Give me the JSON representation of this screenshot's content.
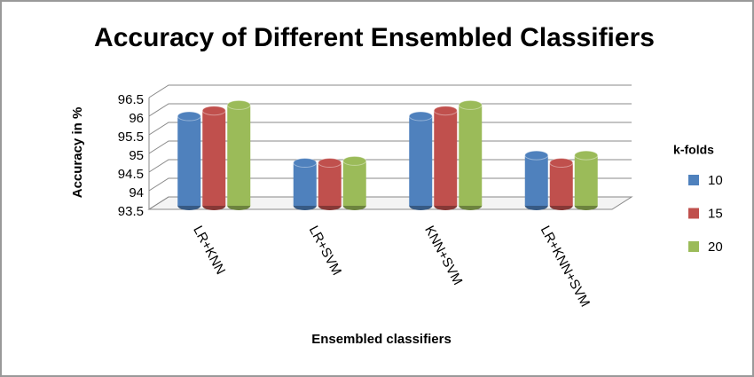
{
  "chart_data": {
    "type": "bar3d",
    "title": "Accuracy of Different Ensembled Classifiers",
    "x_label": "Ensembled classifiers",
    "y_label": "Accuracy  in %",
    "categories": [
      "LR+KNN",
      "LR+SVM",
      "KNN+SVM",
      "LR+KNN+SVM"
    ],
    "legend_title": "k-folds",
    "series": [
      {
        "name": "10",
        "color": "#4f81bd",
        "values": [
          96.0,
          94.75,
          96.0,
          94.95
        ]
      },
      {
        "name": "15",
        "color": "#c0504d",
        "values": [
          96.15,
          94.75,
          96.15,
          94.75
        ]
      },
      {
        "name": "20",
        "color": "#9bbb59",
        "values": [
          96.3,
          94.8,
          96.3,
          94.95
        ]
      }
    ],
    "ylim": [
      93.5,
      96.5
    ],
    "yticks": [
      93.5,
      94,
      94.5,
      95,
      95.5,
      96,
      96.5
    ],
    "grid": true,
    "legend": "right"
  }
}
